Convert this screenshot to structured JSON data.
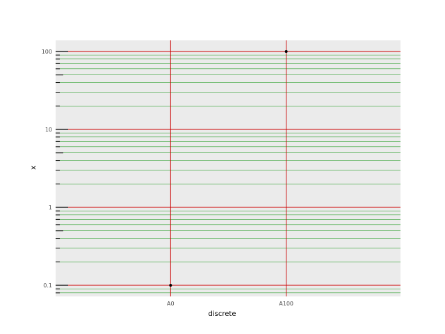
{
  "chart_data": {
    "type": "scatter",
    "title": "",
    "xlabel": "discrete",
    "ylabel": "x",
    "x_scale": "discrete",
    "y_scale": "log10",
    "categories": [
      "A0",
      "A100"
    ],
    "points": [
      {
        "x": "A0",
        "y": 0.1
      },
      {
        "x": "A100",
        "y": 100
      }
    ],
    "ylim": [
      0.075,
      133
    ],
    "y_major_ticks": [
      0.1,
      1,
      10,
      100
    ],
    "y_tick_labels": [
      "0.1",
      "1",
      "10",
      "100"
    ],
    "y_minor_ticks": [
      0.08,
      0.09,
      0.2,
      0.3,
      0.4,
      0.5,
      0.6,
      0.7,
      0.8,
      0.9,
      2,
      3,
      4,
      5,
      6,
      7,
      8,
      9,
      20,
      30,
      40,
      50,
      60,
      70,
      80,
      90
    ],
    "grid": true,
    "panel_background": "#ebebeb",
    "major_grid_color": "#cc0000",
    "minor_grid_color": "#2ca02c",
    "point_color": "#000000",
    "log_tick_color": "#000000"
  }
}
